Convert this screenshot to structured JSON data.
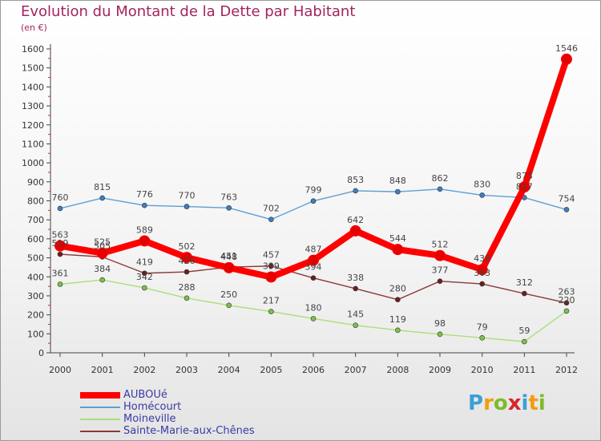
{
  "header": {
    "title": "Evolution du Montant de la Dette par Habitant",
    "subtitle": "(en €)"
  },
  "logo": {
    "letters": [
      "P",
      "r",
      "o",
      "x",
      "i",
      "t",
      "i"
    ],
    "colors": [
      "#3aa0d8",
      "#f39c12",
      "#7dbb2a",
      "#d8242a",
      "#3aa0d8",
      "#f39c12",
      "#7dbb2a"
    ]
  },
  "chart_data": {
    "type": "line",
    "title": "Evolution du Montant de la Dette par Habitant",
    "subtitle": "(en €)",
    "xlabel": "",
    "ylabel": "",
    "x": [
      "2000",
      "2001",
      "2002",
      "2003",
      "2004",
      "2005",
      "2006",
      "2007",
      "2008",
      "2009",
      "2010",
      "2011",
      "2012"
    ],
    "ylim": [
      0,
      1600
    ],
    "yticks": [
      0,
      100,
      200,
      300,
      400,
      500,
      600,
      700,
      800,
      900,
      1000,
      1100,
      1200,
      1300,
      1400,
      1500,
      1600
    ],
    "grid": false,
    "legend_position": "bottom-left",
    "series": [
      {
        "name": "AUBOUé",
        "color": "#ff0000",
        "marker_color": "#e60000",
        "emphasis": "thick",
        "values": [
          563,
          525,
          589,
          502,
          448,
          399,
          487,
          642,
          544,
          512,
          438,
          873,
          1546
        ],
        "labels": [
          "563",
          "525",
          "589",
          "502",
          "448",
          "399",
          "487",
          "642",
          "544",
          "512",
          "438",
          "873",
          "1546"
        ]
      },
      {
        "name": "Homécourt",
        "color": "#5e9fd2",
        "marker_color": "#3d7fc0",
        "emphasis": "thin",
        "values": [
          760,
          815,
          776,
          770,
          763,
          702,
          799,
          853,
          848,
          862,
          830,
          817,
          754
        ],
        "labels": [
          "760",
          "815",
          "776",
          "770",
          "763",
          "702",
          "799",
          "853",
          "848",
          "862",
          "830",
          "817",
          "754"
        ]
      },
      {
        "name": "Moineville",
        "color": "#a8e07a",
        "marker_color": "#7cc24a",
        "emphasis": "thin",
        "values": [
          361,
          384,
          342,
          288,
          250,
          217,
          180,
          145,
          119,
          98,
          79,
          59,
          220
        ],
        "labels": [
          "361",
          "384",
          "342",
          "288",
          "250",
          "217",
          "180",
          "145",
          "119",
          "98",
          "79",
          "59",
          "220"
        ]
      },
      {
        "name": "Sainte-Marie-aux-Chênes",
        "color": "#8b3a3a",
        "marker_color": "#6a1f1f",
        "emphasis": "thin",
        "values": [
          519,
          505,
          419,
          426,
          451,
          457,
          394,
          338,
          280,
          377,
          363,
          312,
          263
        ],
        "labels": [
          "519",
          "505",
          "419",
          "426",
          "451",
          "457",
          "394",
          "338",
          "280",
          "377",
          "363",
          "312",
          "263"
        ]
      }
    ]
  }
}
